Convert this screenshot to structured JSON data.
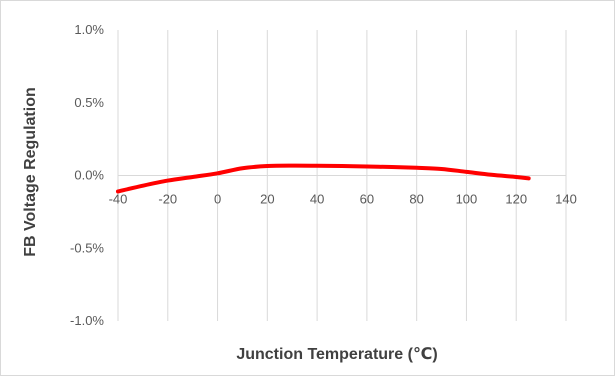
{
  "chart_data": {
    "type": "line",
    "title": "",
    "xlabel": "Junction Temperature (℃)",
    "ylabel": "FB Voltage Regulation",
    "xlim": [
      -40,
      140
    ],
    "ylim": [
      -1.0,
      1.0
    ],
    "x_ticks": [
      "-40",
      "-20",
      "0",
      "20",
      "40",
      "60",
      "80",
      "100",
      "120",
      "140"
    ],
    "y_ticks": [
      "1.0%",
      "0.5%",
      "0.0%",
      "-0.5%",
      "-1.0%"
    ],
    "grid": "vertical",
    "legend": "none",
    "series": [
      {
        "color": "#ff0000",
        "x": [
          -40,
          -30,
          -20,
          -10,
          0,
          10,
          20,
          30,
          40,
          50,
          60,
          70,
          80,
          90,
          100,
          110,
          120,
          125
        ],
        "y": [
          -0.11,
          -0.07,
          -0.035,
          -0.01,
          0.015,
          0.05,
          0.065,
          0.068,
          0.067,
          0.065,
          0.062,
          0.058,
          0.053,
          0.045,
          0.025,
          0.005,
          -0.01,
          -0.02
        ]
      }
    ]
  }
}
